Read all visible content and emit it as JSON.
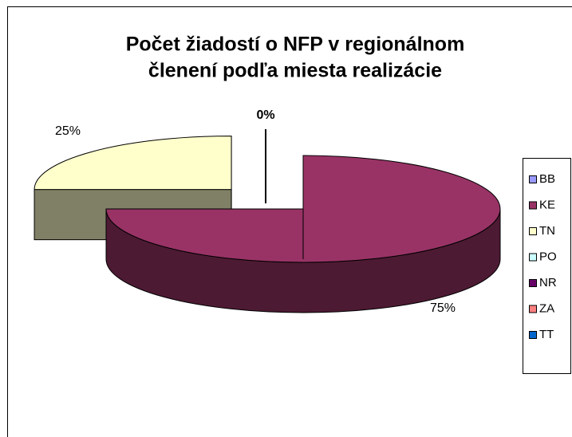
{
  "chart_data": {
    "type": "pie3d",
    "title": [
      "Počet žiadostí o NFP v regionálnom",
      "členení podľa miesta realizácie"
    ],
    "categories": [
      "BB",
      "KE",
      "TN",
      "PO",
      "NR",
      "ZA",
      "TT"
    ],
    "values": [
      0,
      75,
      25,
      0,
      0,
      0,
      0
    ],
    "value_labels": [
      "0%",
      "75%",
      "25%",
      null,
      null,
      null,
      null
    ],
    "colors": [
      "#9999ff",
      "#993366",
      "#ffffcc",
      "#ccffff",
      "#660066",
      "#ff8080",
      "#0066cc"
    ],
    "legend": "right"
  }
}
